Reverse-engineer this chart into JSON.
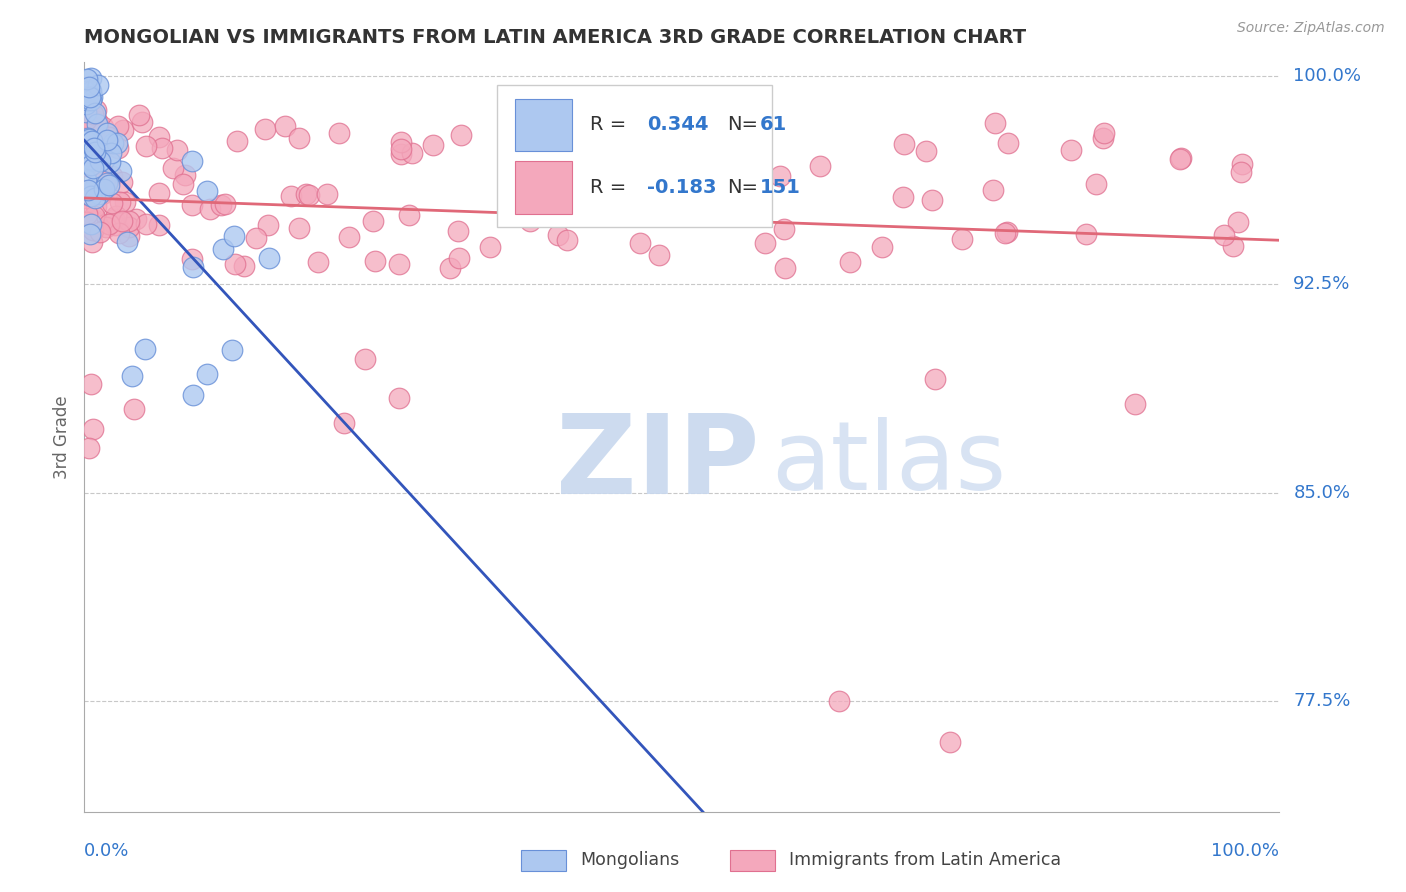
{
  "title": "MONGOLIAN VS IMMIGRANTS FROM LATIN AMERICA 3RD GRADE CORRELATION CHART",
  "source": "Source: ZipAtlas.com",
  "ylabel": "3rd Grade",
  "xlim": [
    0.0,
    1.0
  ],
  "ylim": [
    0.735,
    1.005
  ],
  "yticks": [
    0.775,
    0.85,
    0.925,
    1.0
  ],
  "ytick_labels": [
    "77.5%",
    "85.0%",
    "92.5%",
    "100.0%"
  ],
  "mongolian_color": "#adc8f0",
  "latin_color": "#f4a8bc",
  "mongolian_edge": "#6890d8",
  "latin_edge": "#e07090",
  "trend_blue": "#3355bb",
  "trend_pink": "#e06878",
  "watermark_text": "ZIPatlas",
  "watermark_color": "#c8d8ee",
  "background": "#ffffff",
  "grid_color": "#c8c8c8",
  "title_color": "#333333",
  "axis_label_color": "#666666",
  "tick_color": "#3377cc",
  "legend_box_color": "#dddddd"
}
